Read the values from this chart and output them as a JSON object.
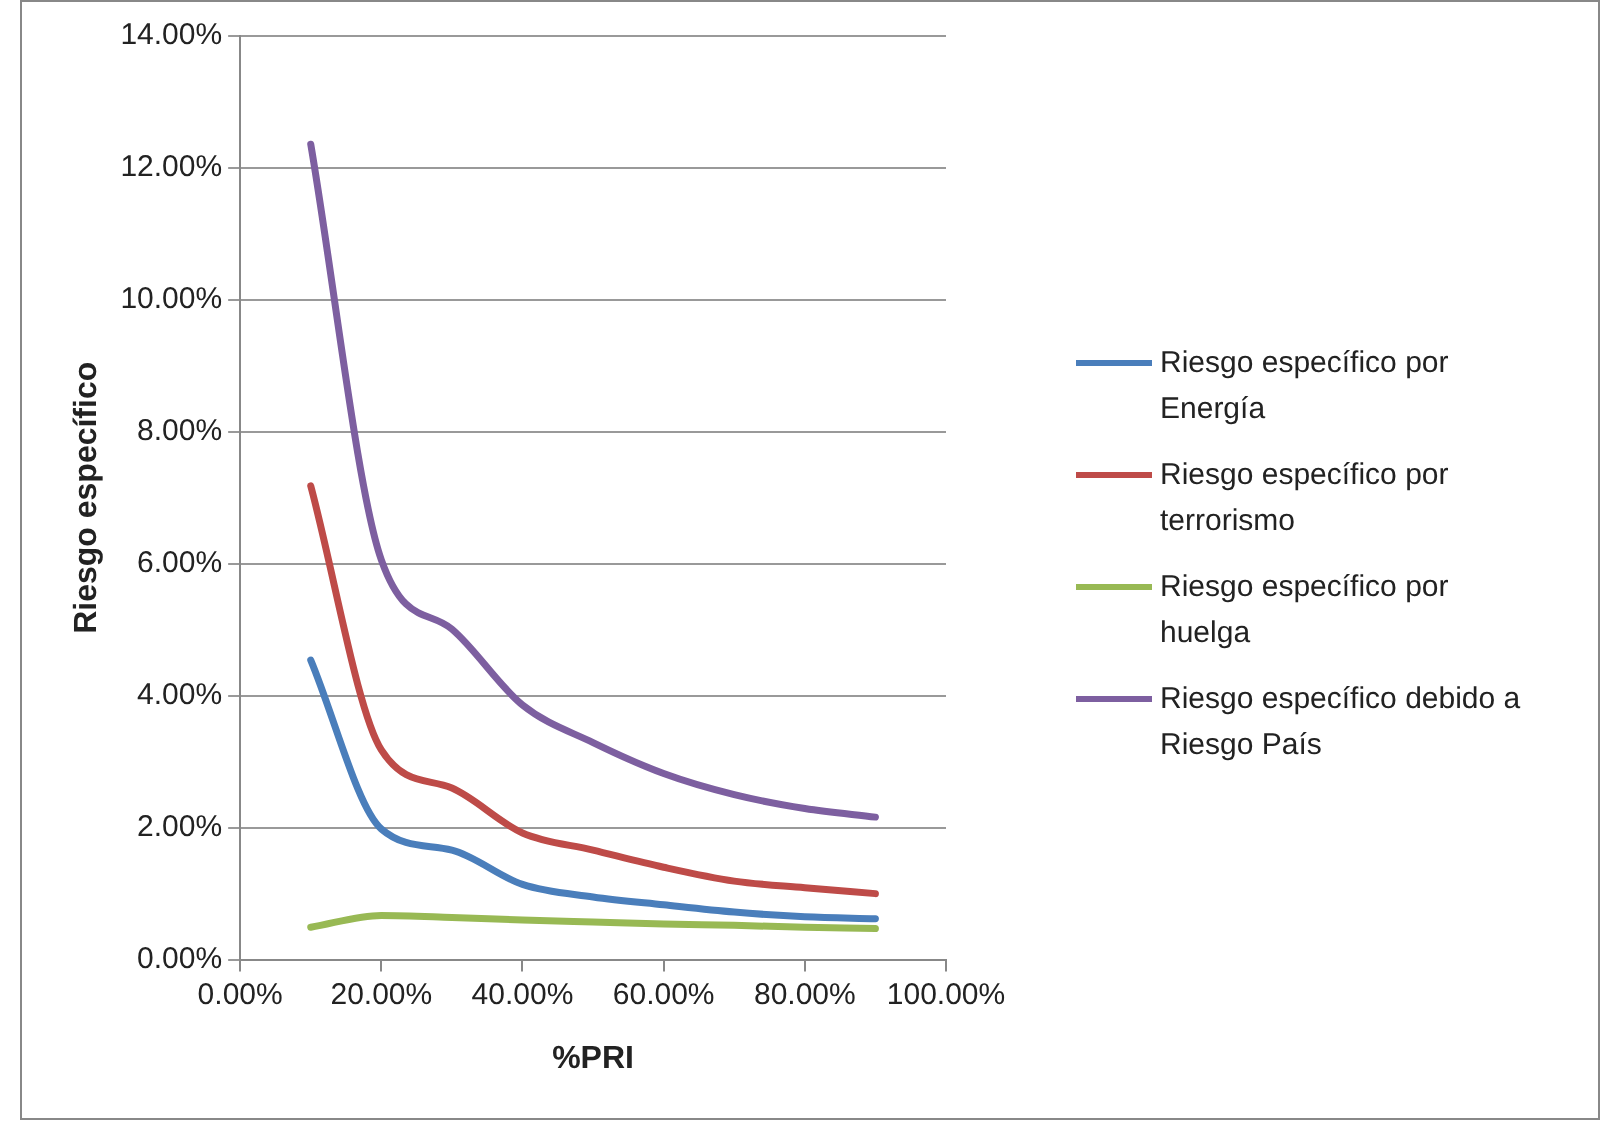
{
  "chart_data": {
    "type": "line",
    "xlabel": "%PRI",
    "ylabel": "Riesgo específico",
    "x": [
      10,
      20,
      30,
      40,
      50,
      60,
      70,
      80,
      90
    ],
    "series": [
      {
        "name": "Riesgo específico por Energía",
        "color": "#4a7ebb",
        "values": [
          4.54,
          1.98,
          1.66,
          1.14,
          0.95,
          0.83,
          0.72,
          0.65,
          0.62
        ]
      },
      {
        "name": "Riesgo específico por terrorismo",
        "color": "#be4b48",
        "values": [
          7.18,
          3.18,
          2.6,
          1.92,
          1.66,
          1.4,
          1.19,
          1.09,
          1.0
        ]
      },
      {
        "name": "Riesgo específico por huelga",
        "color": "#98b954",
        "values": [
          0.49,
          0.67,
          0.64,
          0.6,
          0.57,
          0.54,
          0.52,
          0.49,
          0.47
        ]
      },
      {
        "name": "Riesgo específico debido a Riesgo País",
        "color": "#7d5fa0",
        "values": [
          12.36,
          6.06,
          5.01,
          3.86,
          3.29,
          2.82,
          2.5,
          2.29,
          2.16
        ]
      }
    ],
    "xlim": [
      0,
      100
    ],
    "xticks": [
      {
        "value": 0,
        "label": "0.00%"
      },
      {
        "value": 20,
        "label": "20.00%"
      },
      {
        "value": 40,
        "label": "40.00%"
      },
      {
        "value": 60,
        "label": "60.00%"
      },
      {
        "value": 80,
        "label": "80.00%"
      },
      {
        "value": 100,
        "label": "100.00%"
      }
    ],
    "ylim": [
      0,
      14
    ],
    "yticks": [
      {
        "value": 0,
        "label": "0.00%"
      },
      {
        "value": 2,
        "label": "2.00%"
      },
      {
        "value": 4,
        "label": "4.00%"
      },
      {
        "value": 6,
        "label": "6.00%"
      },
      {
        "value": 8,
        "label": "8.00%"
      },
      {
        "value": 10,
        "label": "10.00%"
      },
      {
        "value": 12,
        "label": "12.00%"
      },
      {
        "value": 14,
        "label": "14.00%"
      }
    ],
    "grid": "y",
    "legend": "right",
    "marker": "none",
    "line_style": "solid"
  }
}
